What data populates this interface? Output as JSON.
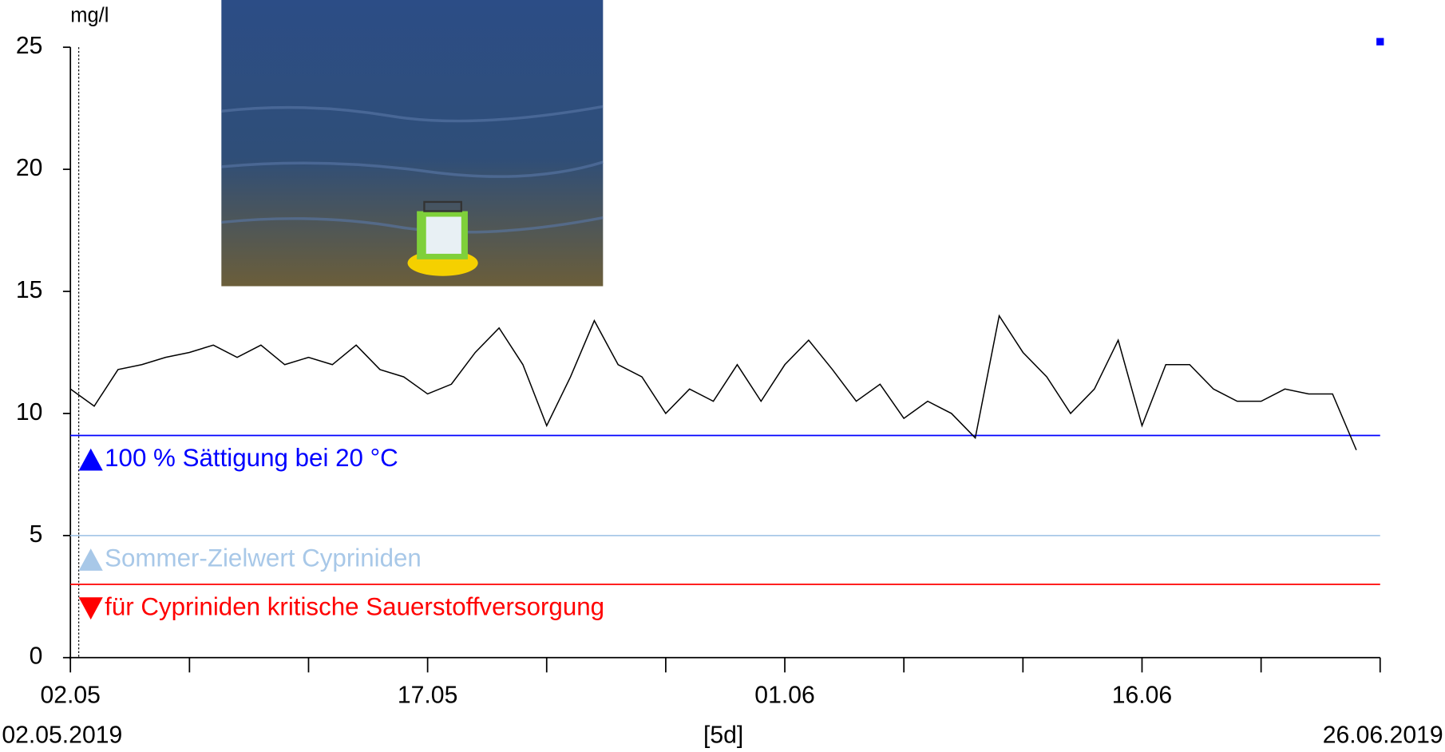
{
  "chart_data": {
    "type": "line",
    "y_unit": "mg/l",
    "x": [
      "2019-05-02",
      "2019-05-03",
      "2019-05-04",
      "2019-05-05",
      "2019-05-06",
      "2019-05-07",
      "2019-05-08",
      "2019-05-09",
      "2019-05-10",
      "2019-05-11",
      "2019-05-12",
      "2019-05-13",
      "2019-05-14",
      "2019-05-15",
      "2019-05-16",
      "2019-05-17",
      "2019-05-18",
      "2019-05-19",
      "2019-05-20",
      "2019-05-21",
      "2019-05-22",
      "2019-05-23",
      "2019-05-24",
      "2019-05-25",
      "2019-05-26",
      "2019-05-27",
      "2019-05-28",
      "2019-05-29",
      "2019-05-30",
      "2019-05-31",
      "2019-06-01",
      "2019-06-02",
      "2019-06-03",
      "2019-06-04",
      "2019-06-05",
      "2019-06-06",
      "2019-06-07",
      "2019-06-08",
      "2019-06-09",
      "2019-06-10",
      "2019-06-11",
      "2019-06-12",
      "2019-06-13",
      "2019-06-14",
      "2019-06-15",
      "2019-06-16",
      "2019-06-17",
      "2019-06-18",
      "2019-06-19",
      "2019-06-20",
      "2019-06-21",
      "2019-06-22",
      "2019-06-23",
      "2019-06-24",
      "2019-06-25"
    ],
    "series": [
      {
        "color": "#000000",
        "values": [
          11.0,
          10.3,
          11.8,
          12.0,
          12.3,
          12.5,
          12.8,
          12.3,
          12.8,
          12.0,
          12.3,
          12.0,
          12.8,
          11.8,
          11.5,
          10.8,
          11.2,
          12.5,
          13.5,
          12.0,
          9.5,
          11.5,
          13.8,
          12.0,
          11.5,
          10.0,
          11.0,
          10.5,
          12.0,
          10.5,
          12.0,
          13.0,
          11.8,
          10.5,
          11.2,
          9.8,
          10.5,
          10.0,
          9.0,
          14.0,
          12.5,
          11.5,
          10.0,
          11.0,
          13.0,
          9.5,
          12.0,
          12.0,
          11.0,
          10.5,
          10.5,
          11.0,
          10.8,
          10.8,
          8.5
        ]
      }
    ],
    "xlim": [
      "2019-05-02",
      "2019-06-26"
    ],
    "xticks": [
      {
        "value": "2019-05-02",
        "label": "02.05"
      },
      {
        "value": "2019-05-17",
        "label": "17.05"
      },
      {
        "value": "2019-06-01",
        "label": "01.06"
      },
      {
        "value": "2019-06-16",
        "label": "16.06"
      }
    ],
    "xminor_ticks": [
      "2019-05-07",
      "2019-05-12",
      "2019-05-22",
      "2019-05-27",
      "2019-06-06",
      "2019-06-11",
      "2019-06-21",
      "2019-06-26"
    ],
    "ylim": [
      0,
      26
    ],
    "yticks": [
      0,
      5,
      10,
      15,
      20,
      25
    ],
    "reference_lines": [
      {
        "value": 9.1,
        "color": "#0000ff",
        "label": "100 % Sättigung bei 20 °C",
        "marker": "up"
      },
      {
        "value": 5,
        "color": "#a8c8e8",
        "label": "Sommer-Zielwert Cypriniden",
        "marker": "up"
      },
      {
        "value": 3,
        "color": "#ff0000",
        "label": "für Cypriniden kritische Sauerstoffversorgung",
        "marker": "down"
      }
    ],
    "x_start_label": "02.05.2019",
    "interval_label": "[5d]",
    "x_end_label": "26.06.2019"
  }
}
